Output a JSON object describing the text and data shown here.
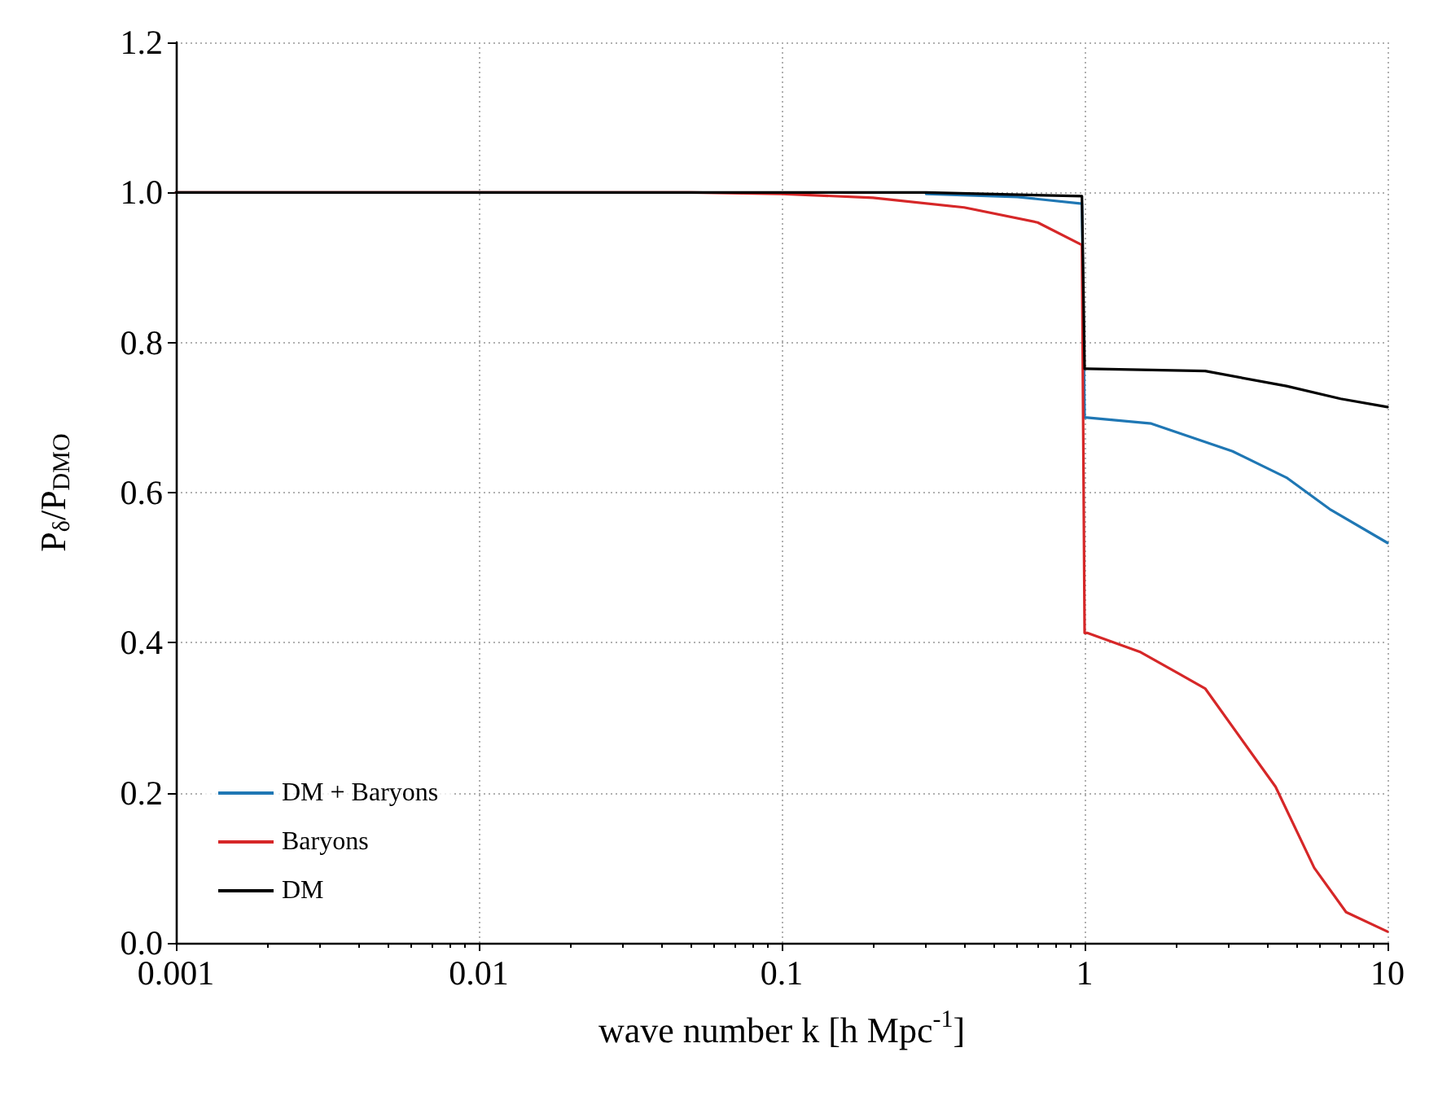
{
  "chart_data": {
    "type": "line",
    "xlabel": "wave number k [h Mpc$^{-1}$]",
    "ylabel": "P$_{δ}$/P$_{DMO}$",
    "log": "x",
    "xlim": [
      0.001,
      10
    ],
    "xticks": [
      0.001,
      0.01,
      0.1,
      1,
      10
    ],
    "ylim": [
      0,
      1.2
    ],
    "yticks": [
      {
        "value": 0,
        "label": "0.0"
      },
      {
        "value": 0.2,
        "label": "0.2"
      },
      {
        "value": 0.4,
        "label": "0.4"
      },
      {
        "value": 0.6,
        "label": "0.6"
      },
      {
        "value": 0.8,
        "label": "0.8"
      },
      {
        "value": 1,
        "label": "1.0"
      },
      {
        "value": 1.2,
        "label": "1.2"
      }
    ],
    "grid": true,
    "legend": "bottom left",
    "marker": "none",
    "line_style": "solid",
    "series": [
      {
        "name": "DM + Baryons",
        "color": "#1f77b4",
        "x": [
          0.3,
          0.6,
          0.98,
          1,
          1.02,
          1.66,
          3.08,
          4.64,
          6.5,
          10
        ],
        "values": [
          0.998,
          0.994,
          0.985,
          0.7,
          0.7,
          0.692,
          0.655,
          0.62,
          0.577,
          0.533
        ]
      },
      {
        "name": "Baryons",
        "color": "#d62728",
        "x": [
          0.001,
          0.05,
          0.1,
          0.2,
          0.4,
          0.7,
          0.98,
          1,
          1.02,
          1.52,
          2.02,
          2.5,
          4.27,
          5.73,
          7.3,
          10
        ],
        "values": [
          1,
          1,
          0.998,
          0.993,
          0.98,
          0.96,
          0.93,
          0.413,
          0.413,
          0.388,
          0.36,
          0.339,
          0.208,
          0.1,
          0.041,
          0.015
        ]
      },
      {
        "name": "DM",
        "color": "#000000",
        "x": [
          0.001,
          0.3,
          0.98,
          1,
          1.02,
          2.5,
          4.64,
          7,
          10
        ],
        "values": [
          1,
          1,
          0.995,
          0.765,
          0.765,
          0.762,
          0.742,
          0.725,
          0.714
        ]
      }
    ]
  }
}
